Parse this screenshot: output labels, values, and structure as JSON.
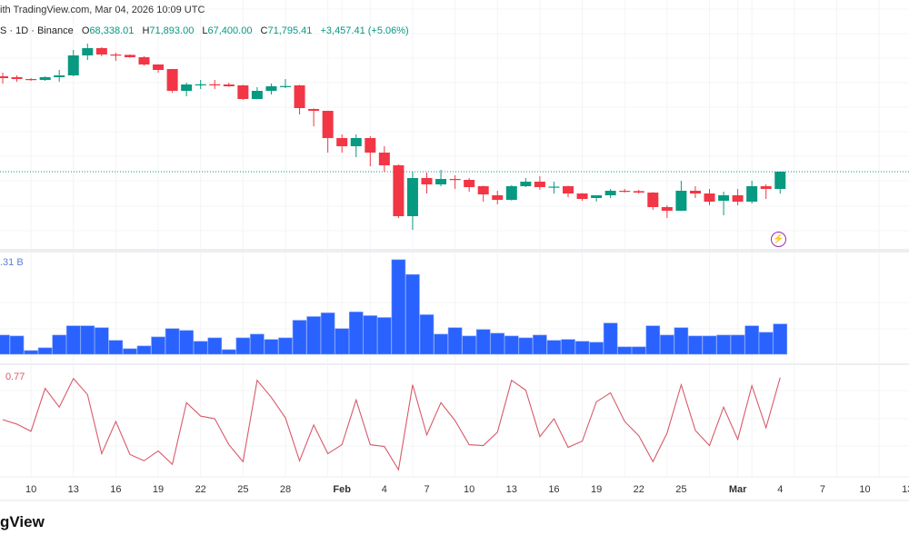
{
  "header": {
    "attribution": "ith TradingView.com, Mar 04, 2026 10:09 UTC",
    "symbol_info": "S · 1D · Binance",
    "ohlc": [
      {
        "key": "O",
        "value": "68,338.01"
      },
      {
        "key": "H",
        "value": "71,893.00"
      },
      {
        "key": "L",
        "value": "67,400.00"
      },
      {
        "key": "C",
        "value": "71,795.41"
      }
    ],
    "change": "+3,457.41 (+5.06%)"
  },
  "volume_label": ".31 B",
  "indicator_label": "0.77",
  "footer": {
    "logo_text": "gView"
  },
  "icons": {
    "alert": "lightning-icon"
  },
  "colors": {
    "up": "#089981",
    "down": "#F23645",
    "volume": "#2962FF",
    "indicator": "#D95A6A",
    "last_price_line": "#089981"
  },
  "x_axis": {
    "ticks": [
      {
        "label": "10",
        "bold": false
      },
      {
        "label": "13",
        "bold": false
      },
      {
        "label": "16",
        "bold": false
      },
      {
        "label": "19",
        "bold": false
      },
      {
        "label": "22",
        "bold": false
      },
      {
        "label": "25",
        "bold": false
      },
      {
        "label": "28",
        "bold": false
      },
      {
        "label": "Feb",
        "bold": true
      },
      {
        "label": "4",
        "bold": false
      },
      {
        "label": "7",
        "bold": false
      },
      {
        "label": "10",
        "bold": false
      },
      {
        "label": "13",
        "bold": false
      },
      {
        "label": "16",
        "bold": false
      },
      {
        "label": "19",
        "bold": false
      },
      {
        "label": "22",
        "bold": false
      },
      {
        "label": "25",
        "bold": false
      },
      {
        "label": "Mar",
        "bold": true
      },
      {
        "label": "4",
        "bold": false
      },
      {
        "label": "7",
        "bold": false
      },
      {
        "label": "10",
        "bold": false
      },
      {
        "label": "13",
        "bold": false
      }
    ]
  },
  "chart_data": {
    "type": "candlestick",
    "dates": [
      "Jan 8",
      "Jan 9",
      "Jan 10",
      "Jan 11",
      "Jan 12",
      "Jan 13",
      "Jan 14",
      "Jan 15",
      "Jan 16",
      "Jan 17",
      "Jan 18",
      "Jan 19",
      "Jan 20",
      "Jan 21",
      "Jan 22",
      "Jan 23",
      "Jan 24",
      "Jan 25",
      "Jan 26",
      "Jan 27",
      "Jan 28",
      "Jan 29",
      "Jan 30",
      "Jan 31",
      "Feb 1",
      "Feb 2",
      "Feb 3",
      "Feb 4",
      "Feb 5",
      "Feb 6",
      "Feb 7",
      "Feb 8",
      "Feb 9",
      "Feb 10",
      "Feb 11",
      "Feb 12",
      "Feb 13",
      "Feb 14",
      "Feb 15",
      "Feb 16",
      "Feb 17",
      "Feb 18",
      "Feb 19",
      "Feb 20",
      "Feb 21",
      "Feb 22",
      "Feb 23",
      "Feb 24",
      "Feb 25",
      "Feb 26",
      "Feb 27",
      "Feb 28",
      "Mar 1",
      "Mar 2",
      "Mar 3",
      "Mar 4"
    ],
    "ohlc": [
      [
        90905,
        91633,
        89449,
        90541
      ],
      [
        90723,
        91087,
        89813,
        90359
      ],
      [
        90359,
        90541,
        90000,
        90177
      ],
      [
        90177,
        90905,
        90000,
        90723
      ],
      [
        90723,
        92179,
        89813,
        91087
      ],
      [
        91087,
        96183,
        90905,
        95091
      ],
      [
        95091,
        97457,
        94181,
        96547
      ],
      [
        96547,
        96729,
        94909,
        95273
      ],
      [
        95273,
        95637,
        93999,
        95200
      ],
      [
        95200,
        95300,
        94600,
        94727
      ],
      [
        94727,
        94909,
        93089,
        93271
      ],
      [
        93271,
        93300,
        91633,
        92179
      ],
      [
        92361,
        92400,
        87600,
        87993
      ],
      [
        87993,
        89631,
        86901,
        89267
      ],
      [
        89267,
        90177,
        88357,
        89300
      ],
      [
        89300,
        90177,
        88357,
        89267
      ],
      [
        89267,
        89631,
        88800,
        88903
      ],
      [
        89085,
        89200,
        86173,
        86355
      ],
      [
        86355,
        88721,
        86300,
        87993
      ],
      [
        87993,
        89449,
        87265,
        88903
      ],
      [
        88903,
        90359,
        88539,
        88950
      ],
      [
        89085,
        89200,
        83261,
        84535
      ],
      [
        84353,
        84450,
        80895,
        83989
      ],
      [
        83989,
        84000,
        75617,
        78529
      ],
      [
        78529,
        79257,
        75617,
        76891
      ],
      [
        76891,
        79257,
        74707,
        78529
      ],
      [
        78529,
        78893,
        72887,
        75617
      ],
      [
        75617,
        76891,
        71795,
        73069
      ],
      [
        73069,
        73250,
        62513,
        62877
      ],
      [
        62877,
        71795,
        60147,
        70521
      ],
      [
        70521,
        71613,
        67427,
        69247
      ],
      [
        69247,
        72159,
        68883,
        70339
      ],
      [
        70339,
        71067,
        68337,
        70157
      ],
      [
        70157,
        70521,
        67791,
        68701
      ],
      [
        68883,
        69000,
        65789,
        67245
      ],
      [
        67063,
        67973,
        65243,
        66153
      ],
      [
        66153,
        69100,
        66000,
        68883
      ],
      [
        68883,
        70521,
        68700,
        69793
      ],
      [
        69793,
        70885,
        68155,
        68701
      ],
      [
        68701,
        69793,
        67427,
        68800
      ],
      [
        68883,
        69000,
        66699,
        67427
      ],
      [
        67427,
        67500,
        65971,
        66335
      ],
      [
        66517,
        67063,
        65789,
        67063
      ],
      [
        67063,
        68337,
        66517,
        67973
      ],
      [
        67973,
        68337,
        67609,
        67900
      ],
      [
        67900,
        68155,
        67427,
        67609
      ],
      [
        67609,
        67700,
        64151,
        64697
      ],
      [
        64697,
        65061,
        62513,
        63969
      ],
      [
        63969,
        69975,
        63900,
        67973
      ],
      [
        67973,
        68883,
        66517,
        67427
      ],
      [
        67427,
        68337,
        65061,
        65789
      ],
      [
        65971,
        67791,
        63059,
        67063
      ],
      [
        67063,
        68337,
        65061,
        65789
      ],
      [
        65789,
        69975,
        65425,
        68883
      ],
      [
        68883,
        69247,
        66335,
        68338.01
      ],
      [
        68338.01,
        71893,
        67400,
        71795.41
      ]
    ],
    "last_close": 71795.41,
    "price_range": [
      56143,
      106193
    ],
    "volume_billions": [
      0.83,
      0.79,
      0.16,
      0.28,
      0.83,
      1.23,
      1.23,
      1.15,
      0.6,
      0.24,
      0.36,
      0.75,
      1.11,
      1.03,
      0.56,
      0.71,
      0.2,
      0.71,
      0.87,
      0.64,
      0.71,
      1.47,
      1.63,
      1.79,
      1.11,
      1.83,
      1.67,
      1.59,
      4.09,
      3.45,
      1.71,
      0.87,
      1.15,
      0.79,
      1.07,
      0.91,
      0.79,
      0.71,
      0.83,
      0.6,
      0.64,
      0.56,
      0.52,
      1.35,
      0.32,
      0.32,
      1.23,
      0.83,
      1.15,
      0.79,
      0.79,
      0.83,
      0.83,
      1.23,
      0.95,
      1.31
    ],
    "volume_range": [
      0,
      4.4
    ],
    "indicator": [
      0.3,
      0.25,
      0.17,
      0.65,
      0.44,
      0.76,
      0.58,
      -0.08,
      0.28,
      -0.09,
      -0.16,
      -0.05,
      -0.2,
      0.49,
      0.34,
      0.31,
      0.02,
      -0.17,
      0.74,
      0.55,
      0.32,
      -0.16,
      0.24,
      -0.08,
      0.02,
      0.52,
      0.02,
      0.0,
      -0.26,
      0.69,
      0.13,
      0.49,
      0.29,
      0.02,
      0.01,
      0.16,
      0.74,
      0.63,
      0.11,
      0.31,
      -0.01,
      0.06,
      0.5,
      0.6,
      0.28,
      0.12,
      -0.17,
      0.15,
      0.69,
      0.18,
      0.01,
      0.44,
      0.08,
      0.68,
      0.21,
      0.77
    ],
    "indicator_range": [
      -0.34,
      0.93
    ],
    "grid": true
  }
}
